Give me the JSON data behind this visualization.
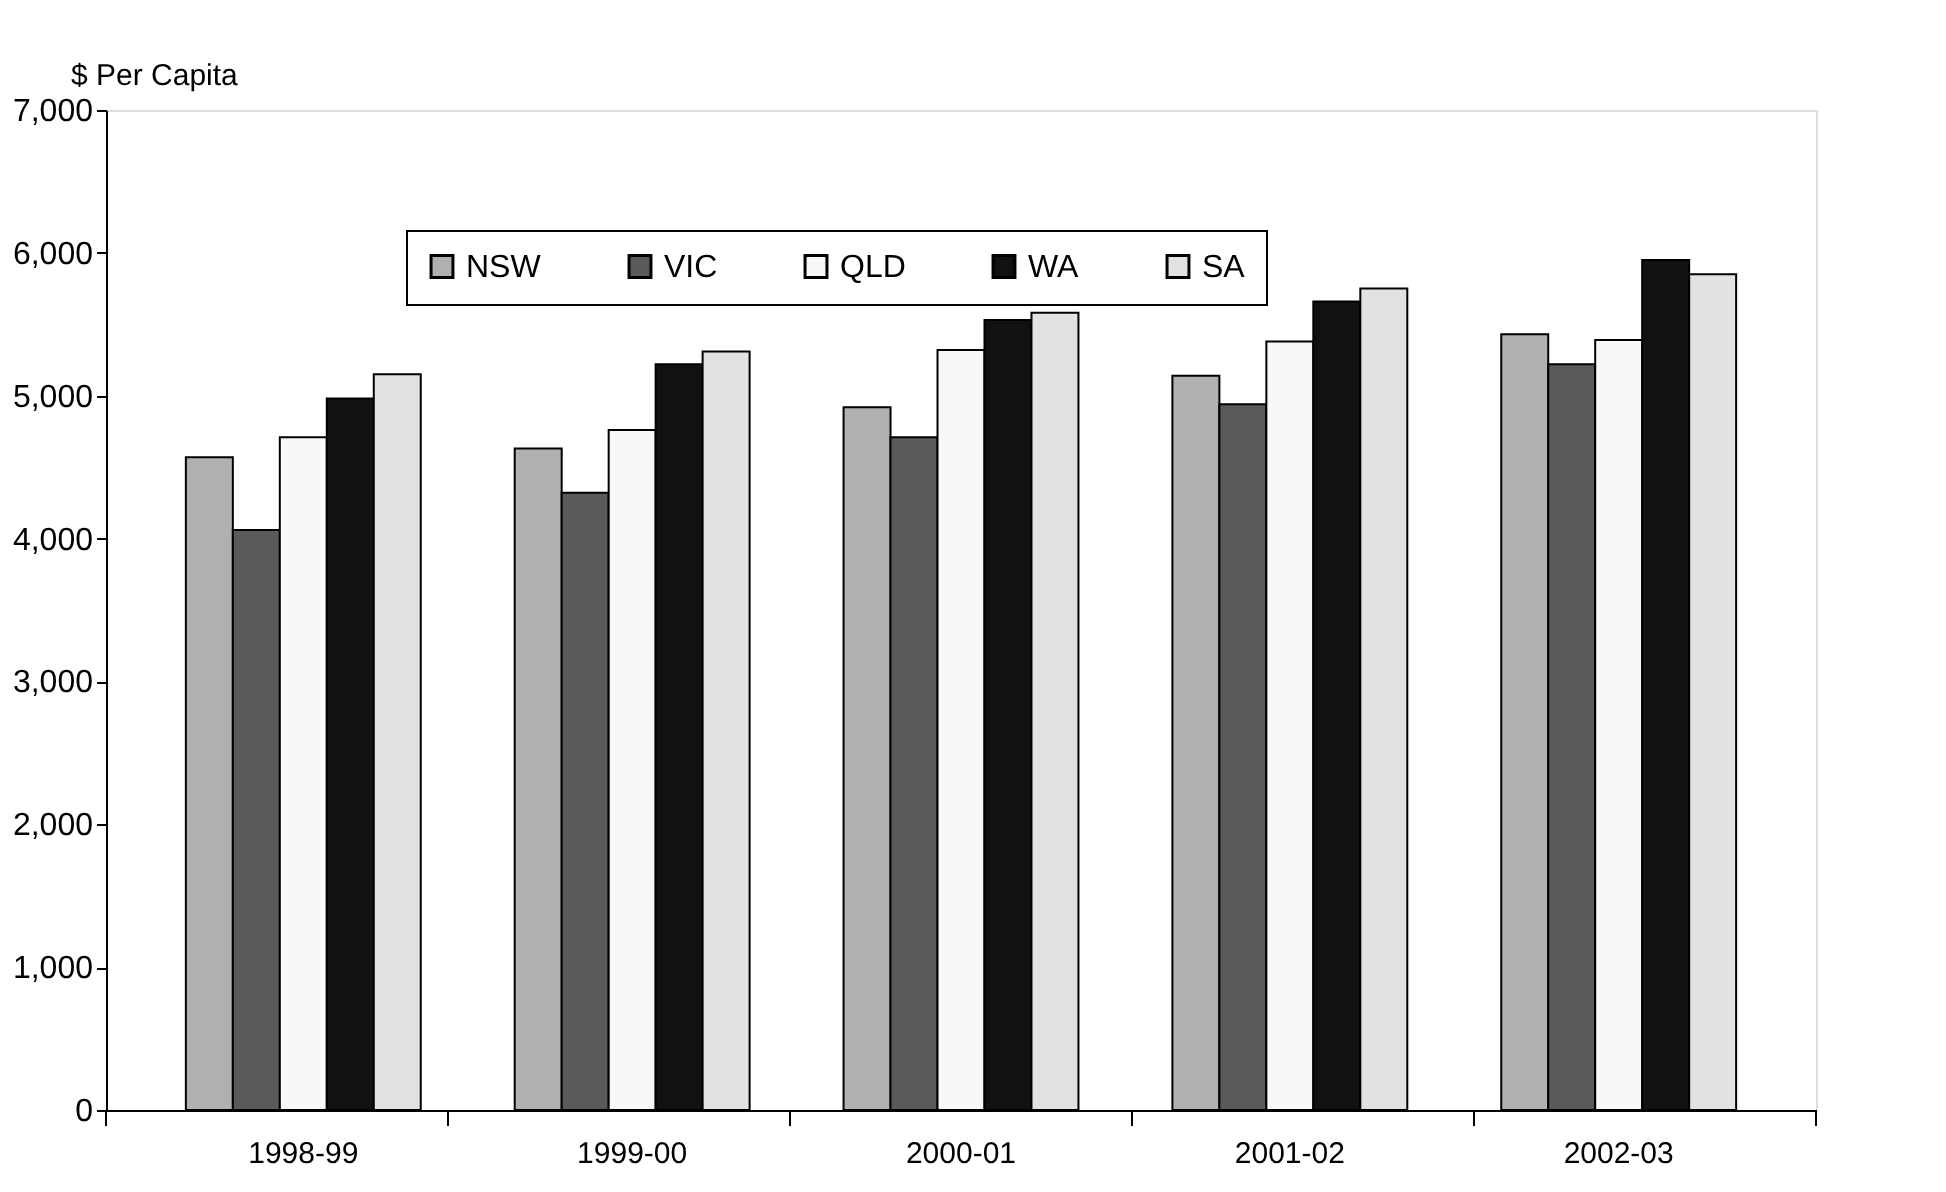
{
  "chart_data": {
    "type": "bar",
    "ylabel": "$ Per Capita",
    "categories": [
      "1998-99",
      "1999-00",
      "2000-01",
      "2001-02",
      "2002-03"
    ],
    "series": [
      {
        "name": "NSW",
        "color": "#b0b0b0",
        "values": [
          4570,
          4630,
          4920,
          5140,
          5430
        ]
      },
      {
        "name": "VIC",
        "color": "#5a5a5a",
        "values": [
          4060,
          4320,
          4710,
          4940,
          5220
        ]
      },
      {
        "name": "QLD",
        "color": "#f8f8f8",
        "values": [
          4710,
          4760,
          5320,
          5380,
          5390
        ]
      },
      {
        "name": "WA",
        "color": "#111111",
        "values": [
          4980,
          5220,
          5530,
          5660,
          5950
        ]
      },
      {
        "name": "SA",
        "color": "#e2e2e2",
        "values": [
          5150,
          5310,
          5580,
          5750,
          5850
        ]
      }
    ],
    "ylim": [
      0,
      7000
    ],
    "yticks": [
      0,
      {
        "value": 1000,
        "label": "1,000"
      },
      {
        "value": 2000,
        "label": "2,000"
      },
      {
        "value": 3000,
        "label": "3,000"
      },
      {
        "value": 4000,
        "label": "4,000"
      },
      {
        "value": 5000,
        "label": "5,000"
      },
      {
        "value": 6000,
        "label": "6,000"
      },
      {
        "value": 7000,
        "label": "7,000"
      }
    ],
    "grid": false,
    "legend": "top"
  }
}
